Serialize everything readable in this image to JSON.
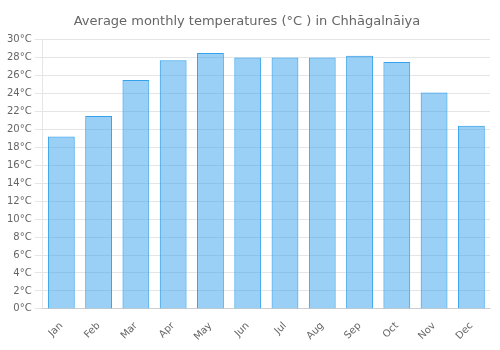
{
  "chart_data": {
    "type": "bar",
    "title": "Average monthly temperatures (°C ) in Chhāgalnāiya",
    "categories": [
      "Jan",
      "Feb",
      "Mar",
      "Apr",
      "May",
      "Jun",
      "Jul",
      "Aug",
      "Sep",
      "Oct",
      "Nov",
      "Dec"
    ],
    "values": [
      19.2,
      21.5,
      25.5,
      27.7,
      28.5,
      28.0,
      28.0,
      28.0,
      28.2,
      27.5,
      24.1,
      20.4
    ],
    "ylim": [
      0,
      30
    ],
    "yticks": [
      {
        "value": 0,
        "label": "0°C"
      },
      {
        "value": 2,
        "label": "2°C"
      },
      {
        "value": 4,
        "label": "4°C"
      },
      {
        "value": 6,
        "label": "6°C"
      },
      {
        "value": 8,
        "label": "8°C"
      },
      {
        "value": 10,
        "label": "10°C"
      },
      {
        "value": 12,
        "label": "12°C"
      },
      {
        "value": 14,
        "label": "14°C"
      },
      {
        "value": 16,
        "label": "16°C"
      },
      {
        "value": 18,
        "label": "18°C"
      },
      {
        "value": 20,
        "label": "20°C"
      },
      {
        "value": 22,
        "label": "22°C"
      },
      {
        "value": 24,
        "label": "24°C"
      },
      {
        "value": 26,
        "label": "26°C"
      },
      {
        "value": 28,
        "label": "28°C"
      },
      {
        "value": 30,
        "label": "30°C"
      }
    ],
    "grid": true
  }
}
